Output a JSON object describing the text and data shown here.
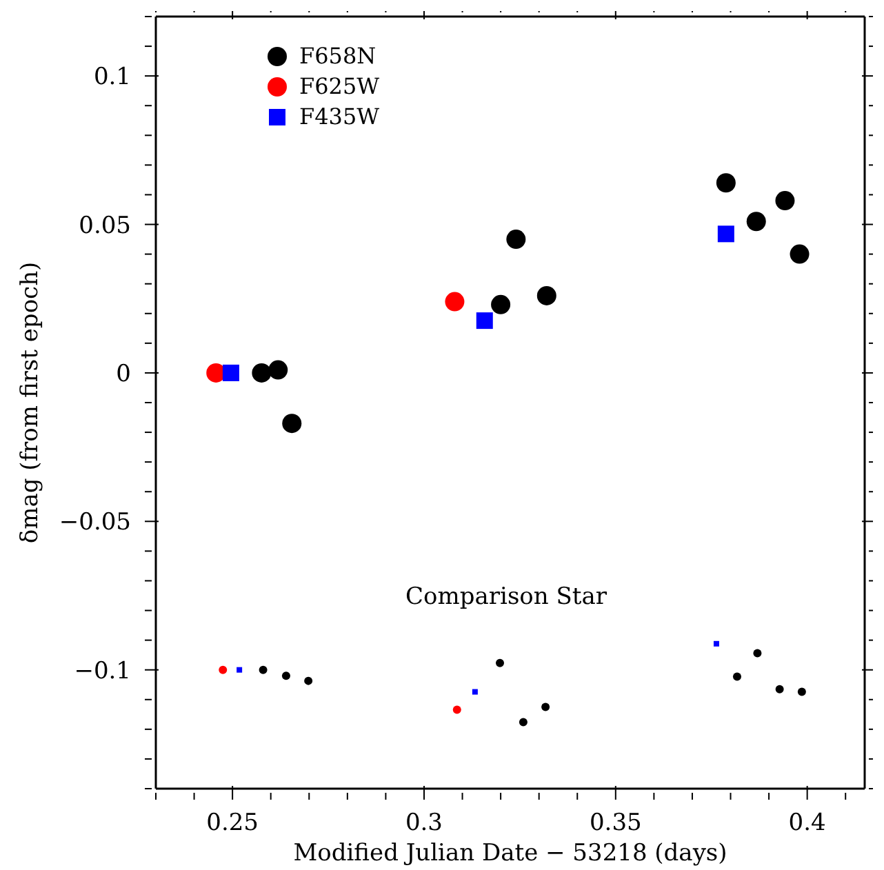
{
  "chart_data": {
    "type": "scatter",
    "xlabel": "Modified Julian Date − 53218 (days)",
    "ylabel": "δmag (from first epoch)",
    "xlim": [
      0.23,
      0.415
    ],
    "ylim": [
      -0.14,
      0.12
    ],
    "xticks": [
      {
        "value": 0.23,
        "label": null
      },
      {
        "value": 0.24,
        "label": null
      },
      0.25,
      {
        "value": 0.26,
        "label": null
      },
      {
        "value": 0.27,
        "label": null
      },
      {
        "value": 0.28,
        "label": null
      },
      {
        "value": 0.29,
        "label": null
      },
      0.3,
      {
        "value": 0.31,
        "label": null
      },
      {
        "value": 0.32,
        "label": null
      },
      {
        "value": 0.33,
        "label": null
      },
      {
        "value": 0.34,
        "label": null
      },
      0.35,
      {
        "value": 0.36,
        "label": null
      },
      {
        "value": 0.37,
        "label": null
      },
      {
        "value": 0.38,
        "label": null
      },
      {
        "value": 0.39,
        "label": null
      },
      0.4,
      {
        "value": 0.41,
        "label": null
      }
    ],
    "yticks": [
      {
        "value": -0.14,
        "label": null
      },
      {
        "value": -0.13,
        "label": null
      },
      {
        "value": -0.12,
        "label": null
      },
      {
        "value": -0.11,
        "label": null
      },
      {
        "value": -0.1,
        "label": "−0.1"
      },
      {
        "value": -0.09,
        "label": null
      },
      {
        "value": -0.08,
        "label": null
      },
      {
        "value": -0.07,
        "label": null
      },
      {
        "value": -0.06,
        "label": null
      },
      {
        "value": -0.05,
        "label": "−0.05"
      },
      {
        "value": -0.04,
        "label": null
      },
      {
        "value": -0.03,
        "label": null
      },
      {
        "value": -0.02,
        "label": null
      },
      {
        "value": -0.01,
        "label": null
      },
      0,
      {
        "value": 0.01,
        "label": null
      },
      {
        "value": 0.02,
        "label": null
      },
      {
        "value": 0.03,
        "label": null
      },
      {
        "value": 0.04,
        "label": null
      },
      0.05,
      {
        "value": 0.06,
        "label": null
      },
      {
        "value": 0.07,
        "label": null
      },
      {
        "value": 0.08,
        "label": null
      },
      {
        "value": 0.09,
        "label": null
      },
      0.1,
      {
        "value": 0.11,
        "label": null
      },
      {
        "value": 0.12,
        "label": null
      }
    ],
    "legend": "top left",
    "series": [
      {
        "name": "F658N",
        "color": "#000000",
        "marker": "circle",
        "x": [
          0.2576,
          0.2619,
          0.2655,
          0.32,
          0.324,
          0.332,
          0.3788,
          0.3867,
          0.3942,
          0.398
        ],
        "values": [
          0,
          0.001,
          -0.017,
          0.023,
          0.045,
          0.026,
          0.064,
          0.051,
          0.058,
          0.04
        ]
      },
      {
        "name": "F625W",
        "color": "#ff0000",
        "marker": "circle",
        "x": [
          0.2457,
          0.308
        ],
        "values": [
          0,
          0.024
        ]
      },
      {
        "name": "F435W",
        "color": "#0000ff",
        "marker": "square",
        "x": [
          0.2496,
          0.3158,
          0.3788
        ],
        "values": [
          0,
          0.0176,
          0.0468
        ]
      },
      {
        "color": "#000000",
        "marker": "circle",
        "x": [
          0.258,
          0.264,
          0.2698,
          0.3198,
          0.3259,
          0.3317,
          0.3817,
          0.387,
          0.3928,
          0.3986
        ],
        "values": [
          -0.1,
          -0.102,
          -0.1037,
          -0.0977,
          -0.1176,
          -0.1125,
          -0.1023,
          -0.0944,
          -0.1065,
          -0.1074
        ]
      },
      {
        "color": "#ff0000",
        "marker": "circle",
        "x": [
          0.2475,
          0.3086
        ],
        "values": [
          -0.1,
          -0.1134
        ]
      },
      {
        "color": "#0000ff",
        "marker": "square",
        "x": [
          0.2518,
          0.3133,
          0.3763
        ],
        "values": [
          -0.1,
          -0.1074,
          -0.0912
        ]
      }
    ],
    "annotations": [
      "Comparison Star"
    ]
  }
}
